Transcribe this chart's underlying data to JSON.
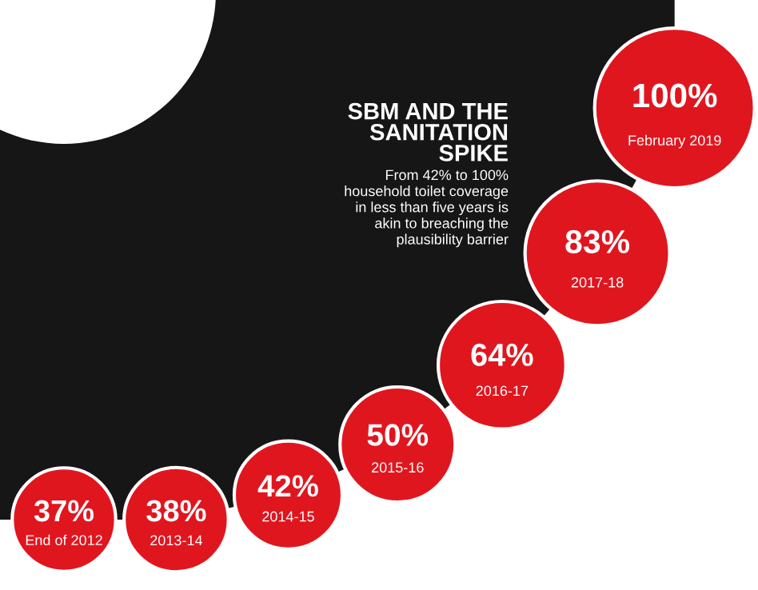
{
  "chart_data": {
    "type": "other",
    "title": "SBM AND THE\nSANITATION\nSPIKE",
    "subtitle": "From 42% to 100%\nhousehold toilet coverage\nin less than five years is\nakin to breaching the\nplausibility barrier",
    "categories": [
      "End of 2012",
      "2013-14",
      "2014-15",
      "2015-16",
      "2016-17",
      "2017-18",
      "February 2019"
    ],
    "values": [
      37,
      38,
      42,
      50,
      64,
      83,
      100
    ],
    "value_labels": [
      "37%",
      "38%",
      "42%",
      "50%",
      "64%",
      "83%",
      "100%"
    ],
    "color": "#e0161f"
  }
}
